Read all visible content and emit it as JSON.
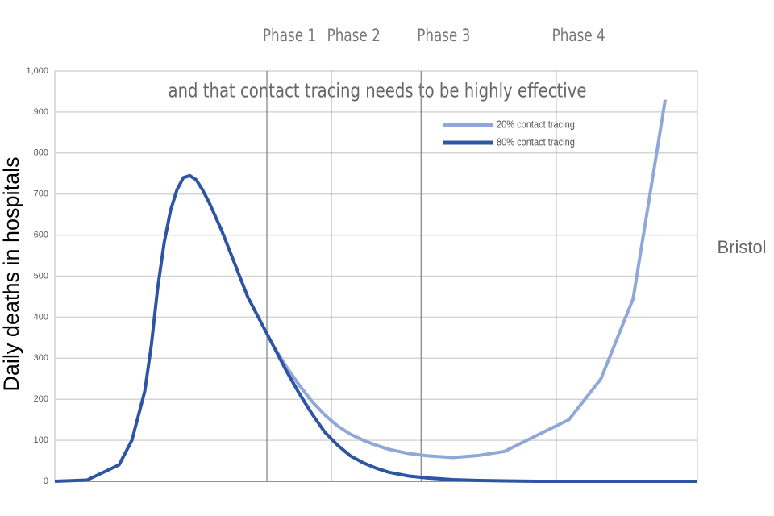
{
  "chart_data": {
    "type": "line",
    "title": "and that contact tracing needs to be highly  effective",
    "y_label": "Daily deaths in hospitals",
    "annotation": "Bristol",
    "xlim": [
      0,
      100
    ],
    "ylim": [
      0,
      1000
    ],
    "yticks": [
      0,
      100,
      200,
      300,
      400,
      500,
      600,
      700,
      800,
      900,
      {
        "value": 1000,
        "label": "1,000"
      }
    ],
    "grid": true,
    "legend": "top-right",
    "phases": [
      {
        "label": "Phase 1",
        "x": 33
      },
      {
        "label": "Phase 2",
        "x": 43
      },
      {
        "label": "Phase 3",
        "x": 57
      },
      {
        "label": "Phase 4",
        "x": 78
      }
    ],
    "x": [
      0,
      5,
      10,
      12,
      14,
      15,
      16,
      17,
      18,
      19,
      20,
      21,
      22,
      23,
      24,
      26,
      28,
      30,
      32,
      34,
      36,
      38,
      40,
      42,
      44,
      46,
      48,
      50,
      52,
      55,
      58,
      62,
      66,
      70,
      75,
      80,
      85,
      90,
      95,
      100
    ],
    "series": [
      {
        "name": "20% contact tracing",
        "color": "#8fa8d8",
        "values": [
          null,
          null,
          null,
          null,
          null,
          null,
          null,
          null,
          null,
          null,
          null,
          null,
          null,
          null,
          null,
          null,
          null,
          null,
          null,
          330,
          280,
          235,
          195,
          162,
          135,
          115,
          100,
          88,
          78,
          68,
          62,
          58,
          63,
          73,
          112,
          150,
          250,
          445,
          930,
          null
        ]
      },
      {
        "name": "80% contact tracing",
        "color": "#2e54a4",
        "values": [
          0,
          3,
          40,
          100,
          220,
          330,
          470,
          580,
          660,
          710,
          740,
          745,
          735,
          710,
          680,
          610,
          530,
          450,
          390,
          330,
          270,
          215,
          165,
          120,
          88,
          62,
          45,
          32,
          22,
          13,
          8,
          4,
          2,
          1,
          0,
          0,
          0,
          0,
          0,
          0
        ]
      }
    ]
  }
}
